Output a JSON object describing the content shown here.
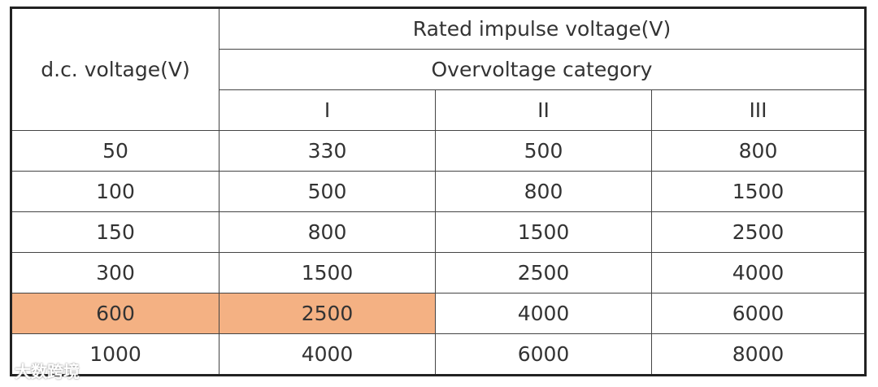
{
  "header": {
    "row_header": "d.c. voltage(V)",
    "group": "Rated impulse voltage(V)",
    "subgroup": "Overvoltage category",
    "categories": [
      "I",
      "II",
      "III"
    ]
  },
  "table": {
    "rows": [
      [
        50,
        330,
        500,
        800
      ],
      [
        100,
        500,
        800,
        1500
      ],
      [
        150,
        800,
        1500,
        2500
      ],
      [
        300,
        1500,
        2500,
        4000
      ],
      [
        600,
        2500,
        4000,
        6000
      ],
      [
        1000,
        4000,
        6000,
        8000
      ]
    ],
    "highlight_color": "#f4b183",
    "highlighted_cells": [
      [
        4,
        0
      ],
      [
        4,
        1
      ]
    ]
  },
  "watermark": "大数跨境"
}
